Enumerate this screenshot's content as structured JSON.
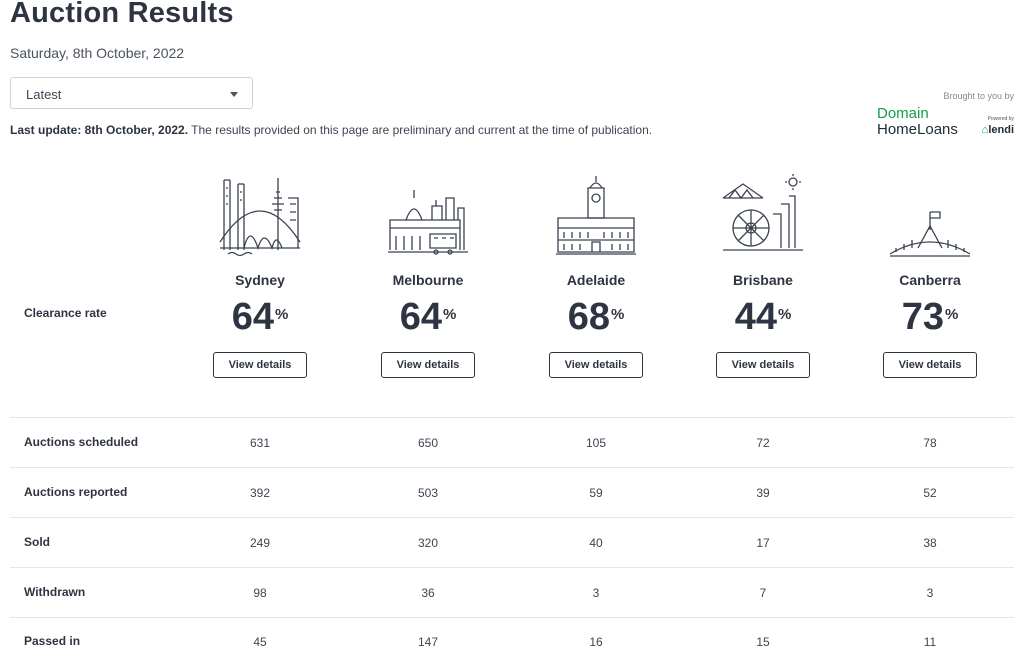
{
  "header": {
    "title": "Auction Results",
    "date": "Saturday, 8th October, 2022"
  },
  "filter": {
    "selected": "Latest"
  },
  "update": {
    "label": "Last update: 8th October, 2022.",
    "text": " The results provided on this page are preliminary and current at the time of publication."
  },
  "sponsor": {
    "brought_by": "Brought to you by",
    "logo_line1": "Domain",
    "logo_line2": "HomeLoans",
    "powered": "Powered by",
    "partner": "lendi"
  },
  "clearance_label": "Clearance rate",
  "percent_sign": "%",
  "view_details": "View details",
  "cities": [
    {
      "name": "Sydney",
      "rate": "64",
      "icon": "sydney-skyline-icon"
    },
    {
      "name": "Melbourne",
      "rate": "64",
      "icon": "melbourne-skyline-icon"
    },
    {
      "name": "Adelaide",
      "rate": "68",
      "icon": "adelaide-building-icon"
    },
    {
      "name": "Brisbane",
      "rate": "44",
      "icon": "brisbane-skyline-icon"
    },
    {
      "name": "Canberra",
      "rate": "73",
      "icon": "canberra-parliament-icon"
    }
  ],
  "rows": [
    {
      "label": "Auctions scheduled",
      "values": [
        "631",
        "650",
        "105",
        "72",
        "78"
      ]
    },
    {
      "label": "Auctions reported",
      "values": [
        "392",
        "503",
        "59",
        "39",
        "52"
      ]
    },
    {
      "label": "Sold",
      "values": [
        "249",
        "320",
        "40",
        "17",
        "38"
      ]
    },
    {
      "label": "Withdrawn",
      "values": [
        "98",
        "36",
        "3",
        "7",
        "3"
      ]
    },
    {
      "label": "Passed in",
      "values": [
        "45",
        "147",
        "16",
        "15",
        "11"
      ]
    }
  ]
}
